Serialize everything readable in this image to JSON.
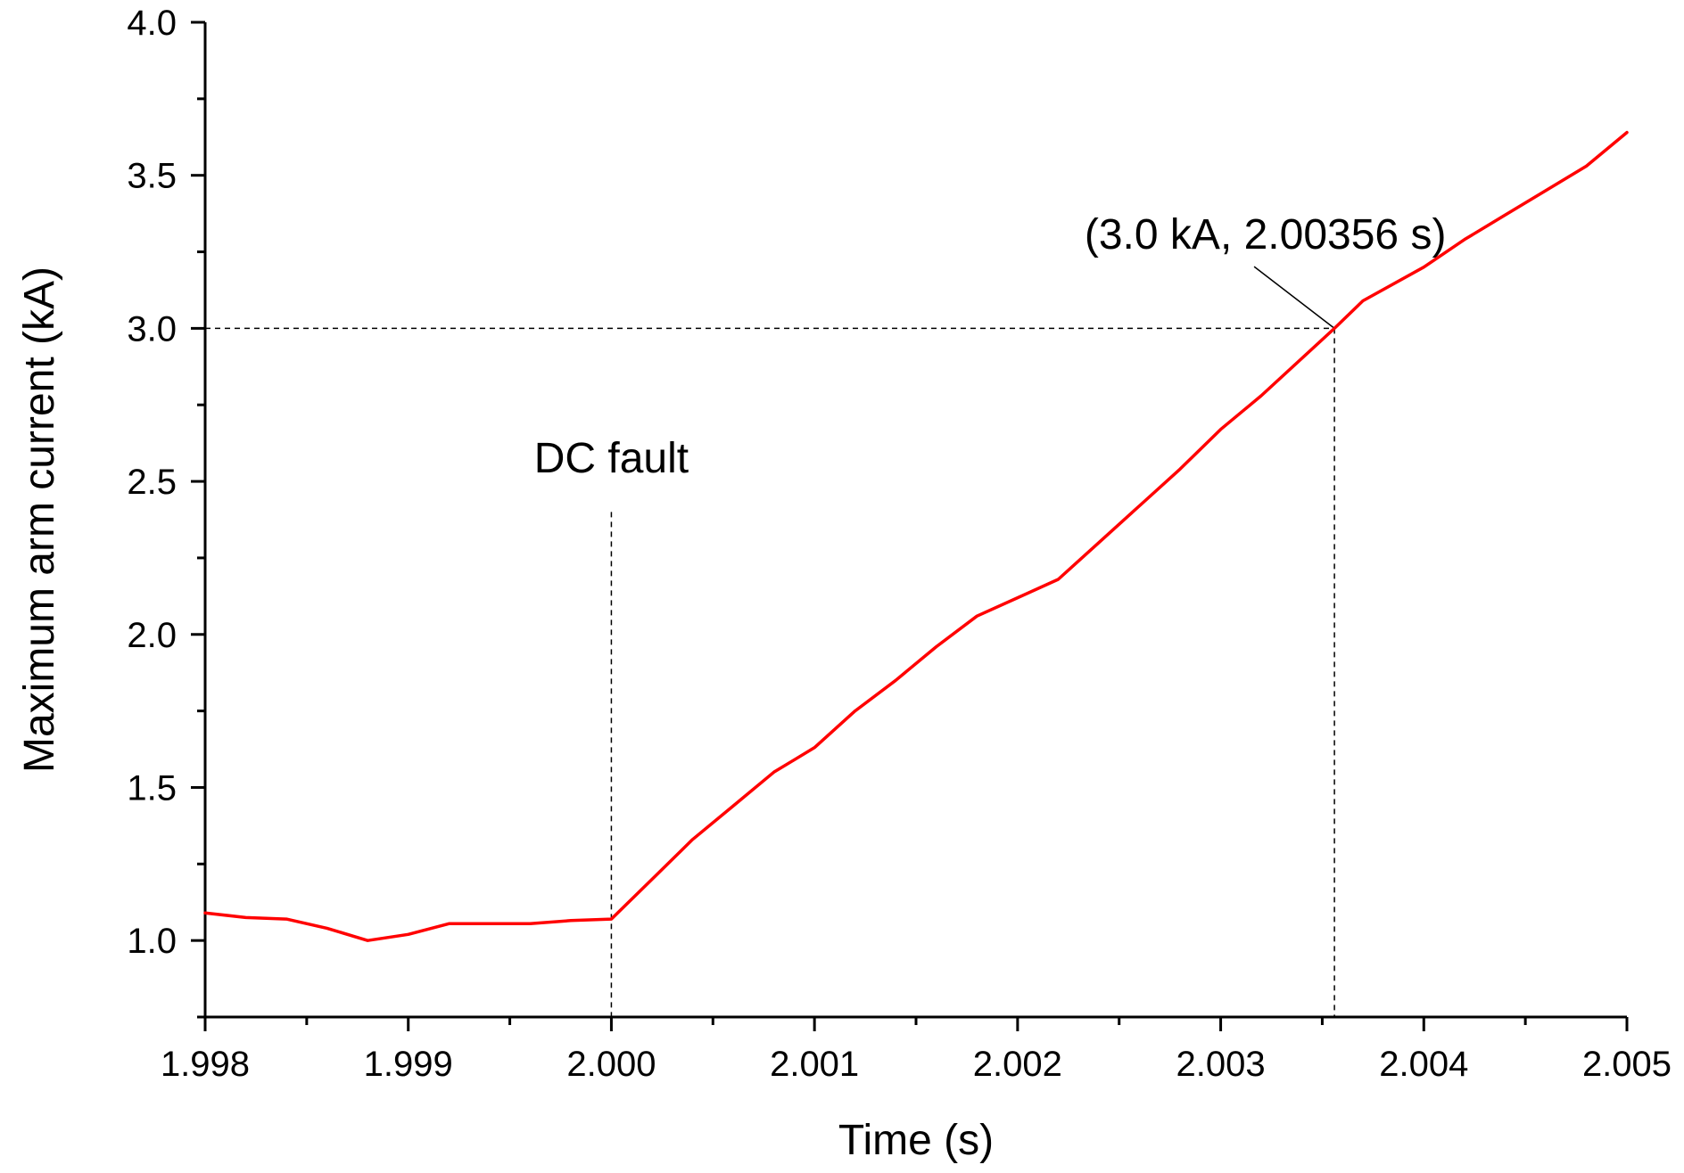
{
  "chart_data": {
    "type": "line",
    "title": "",
    "xlabel": "Time (s)",
    "ylabel": "Maximum arm current (kA)",
    "xlim": [
      1.998,
      2.005
    ],
    "ylim": [
      0.75,
      4.0
    ],
    "x_ticks": [
      1.998,
      1.999,
      2.0,
      2.001,
      2.002,
      2.003,
      2.004,
      2.005
    ],
    "x_tick_labels": [
      "1.998",
      "1.999",
      "2.000",
      "2.001",
      "2.002",
      "2.003",
      "2.004",
      "2.005"
    ],
    "y_ticks": [
      1.0,
      1.5,
      2.0,
      2.5,
      3.0,
      3.5,
      4.0
    ],
    "y_tick_labels": [
      "1.0",
      "1.5",
      "2.0",
      "2.5",
      "3.0",
      "3.5",
      "4.0"
    ],
    "grid": false,
    "series": [
      {
        "color": "#ff0000",
        "x": [
          1.998,
          1.9982,
          1.9984,
          1.9986,
          1.9988,
          1.999,
          1.9992,
          1.9993,
          1.9996,
          1.9998,
          2.0,
          2.0002,
          2.0004,
          2.0006,
          2.0008,
          2.001,
          2.0012,
          2.0014,
          2.0016,
          2.0018,
          2.002,
          2.0022,
          2.0024,
          2.0026,
          2.0028,
          2.003,
          2.0032,
          2.00356,
          2.0037,
          2.004,
          2.0042,
          2.0044,
          2.0046,
          2.0048,
          2.005
        ],
        "y": [
          1.09,
          1.075,
          1.07,
          1.04,
          1.0,
          1.02,
          1.055,
          1.055,
          1.055,
          1.065,
          1.07,
          1.2,
          1.33,
          1.44,
          1.55,
          1.63,
          1.75,
          1.85,
          1.96,
          2.06,
          2.12,
          2.18,
          2.3,
          2.42,
          2.54,
          2.67,
          2.78,
          3.0,
          3.09,
          3.2,
          3.29,
          3.37,
          3.45,
          3.53,
          3.64
        ]
      }
    ],
    "annotations": [
      {
        "text": "DC fault",
        "x": 2.0,
        "y_from": 0.75,
        "y_to": 2.4,
        "label_y": 2.53
      },
      {
        "text": "(3.0 kA, 2.00356 s)",
        "x": 2.00356,
        "y": 3.0,
        "label_x": 2.00322,
        "label_y": 3.26
      }
    ]
  }
}
